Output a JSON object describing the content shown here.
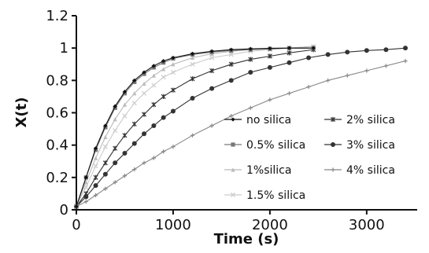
{
  "chart_data": {
    "type": "line",
    "title": "",
    "xlabel": "Time (s)",
    "ylabel": "X(t)",
    "xlim": [
      0,
      3500
    ],
    "ylim": [
      0,
      1.2
    ],
    "xticks": [
      0,
      1000,
      2000,
      3000
    ],
    "yticks": [
      0,
      0.2,
      0.4,
      0.6,
      0.8,
      1,
      1.2
    ],
    "xtick_labels": [
      "0",
      "1000",
      "2000",
      "3000"
    ],
    "ytick_labels": [
      "0",
      "0.2",
      "0.4",
      "0.6",
      "0.8",
      "1",
      "1.2"
    ],
    "grid": false,
    "legend_position": "center-right",
    "series": [
      {
        "name": "no silica",
        "color": "#111111",
        "marker": "diamond",
        "x": [
          0,
          100,
          200,
          300,
          400,
          500,
          600,
          700,
          800,
          900,
          1000,
          1200,
          1400,
          1600,
          1800,
          2000,
          2200,
          2450
        ],
        "y": [
          0.02,
          0.2,
          0.38,
          0.52,
          0.64,
          0.73,
          0.8,
          0.85,
          0.89,
          0.92,
          0.94,
          0.965,
          0.98,
          0.99,
          0.995,
          0.998,
          1.0,
          1.0
        ]
      },
      {
        "name": "0.5% silica",
        "color": "#777777",
        "marker": "square",
        "x": [
          0,
          100,
          200,
          300,
          400,
          500,
          600,
          700,
          800,
          900,
          1000,
          1200,
          1400,
          1600,
          1800,
          2000,
          2200,
          2450
        ],
        "y": [
          0.02,
          0.2,
          0.37,
          0.51,
          0.63,
          0.72,
          0.79,
          0.84,
          0.88,
          0.91,
          0.935,
          0.96,
          0.975,
          0.985,
          0.99,
          0.995,
          1.0,
          1.0
        ]
      },
      {
        "name": "1%silica",
        "color": "#bbbbbb",
        "marker": "triangle",
        "x": [
          0,
          100,
          200,
          300,
          400,
          500,
          600,
          700,
          800,
          900,
          1000,
          1200,
          1400,
          1600,
          1800,
          2000,
          2200,
          2450
        ],
        "y": [
          0.02,
          0.17,
          0.32,
          0.45,
          0.56,
          0.65,
          0.72,
          0.78,
          0.83,
          0.87,
          0.9,
          0.94,
          0.965,
          0.98,
          0.99,
          1.0,
          1.0,
          1.01
        ]
      },
      {
        "name": "1.5% silica",
        "color": "#cccccc",
        "marker": "cross",
        "x": [
          0,
          100,
          200,
          300,
          400,
          500,
          600,
          700,
          800,
          900,
          1000,
          1200,
          1400,
          1600,
          1800,
          2000,
          2200,
          2450
        ],
        "y": [
          0.02,
          0.14,
          0.27,
          0.39,
          0.49,
          0.58,
          0.66,
          0.72,
          0.77,
          0.82,
          0.85,
          0.9,
          0.94,
          0.96,
          0.98,
          0.99,
          1.0,
          1.01
        ]
      },
      {
        "name": "2% silica",
        "color": "#333333",
        "marker": "star",
        "x": [
          0,
          100,
          200,
          300,
          400,
          500,
          600,
          700,
          800,
          900,
          1000,
          1200,
          1400,
          1600,
          1800,
          2000,
          2200,
          2450
        ],
        "y": [
          0.02,
          0.1,
          0.2,
          0.29,
          0.38,
          0.46,
          0.53,
          0.59,
          0.65,
          0.7,
          0.74,
          0.81,
          0.86,
          0.9,
          0.93,
          0.95,
          0.97,
          0.99
        ]
      },
      {
        "name": "3% silica",
        "color": "#333333",
        "marker": "circle",
        "x": [
          0,
          100,
          200,
          300,
          400,
          500,
          600,
          700,
          800,
          900,
          1000,
          1200,
          1400,
          1600,
          1800,
          2000,
          2200,
          2400,
          2600,
          2800,
          3000,
          3200,
          3400
        ],
        "y": [
          0.02,
          0.08,
          0.15,
          0.22,
          0.29,
          0.35,
          0.41,
          0.47,
          0.52,
          0.57,
          0.61,
          0.69,
          0.75,
          0.8,
          0.85,
          0.88,
          0.91,
          0.94,
          0.96,
          0.975,
          0.985,
          0.99,
          1.0
        ]
      },
      {
        "name": "4% silica",
        "color": "#888888",
        "marker": "plus",
        "x": [
          0,
          100,
          200,
          300,
          400,
          500,
          600,
          700,
          800,
          900,
          1000,
          1200,
          1400,
          1600,
          1800,
          2000,
          2200,
          2400,
          2600,
          2800,
          3000,
          3200,
          3400
        ],
        "y": [
          0.02,
          0.05,
          0.09,
          0.13,
          0.17,
          0.21,
          0.25,
          0.29,
          0.32,
          0.36,
          0.39,
          0.46,
          0.52,
          0.58,
          0.63,
          0.68,
          0.72,
          0.76,
          0.8,
          0.83,
          0.86,
          0.89,
          0.92
        ]
      }
    ],
    "legend_order": [
      "no silica",
      "2% silica",
      "0.5% silica",
      "3% silica",
      "1%silica",
      "4% silica",
      "1.5% silica"
    ]
  }
}
